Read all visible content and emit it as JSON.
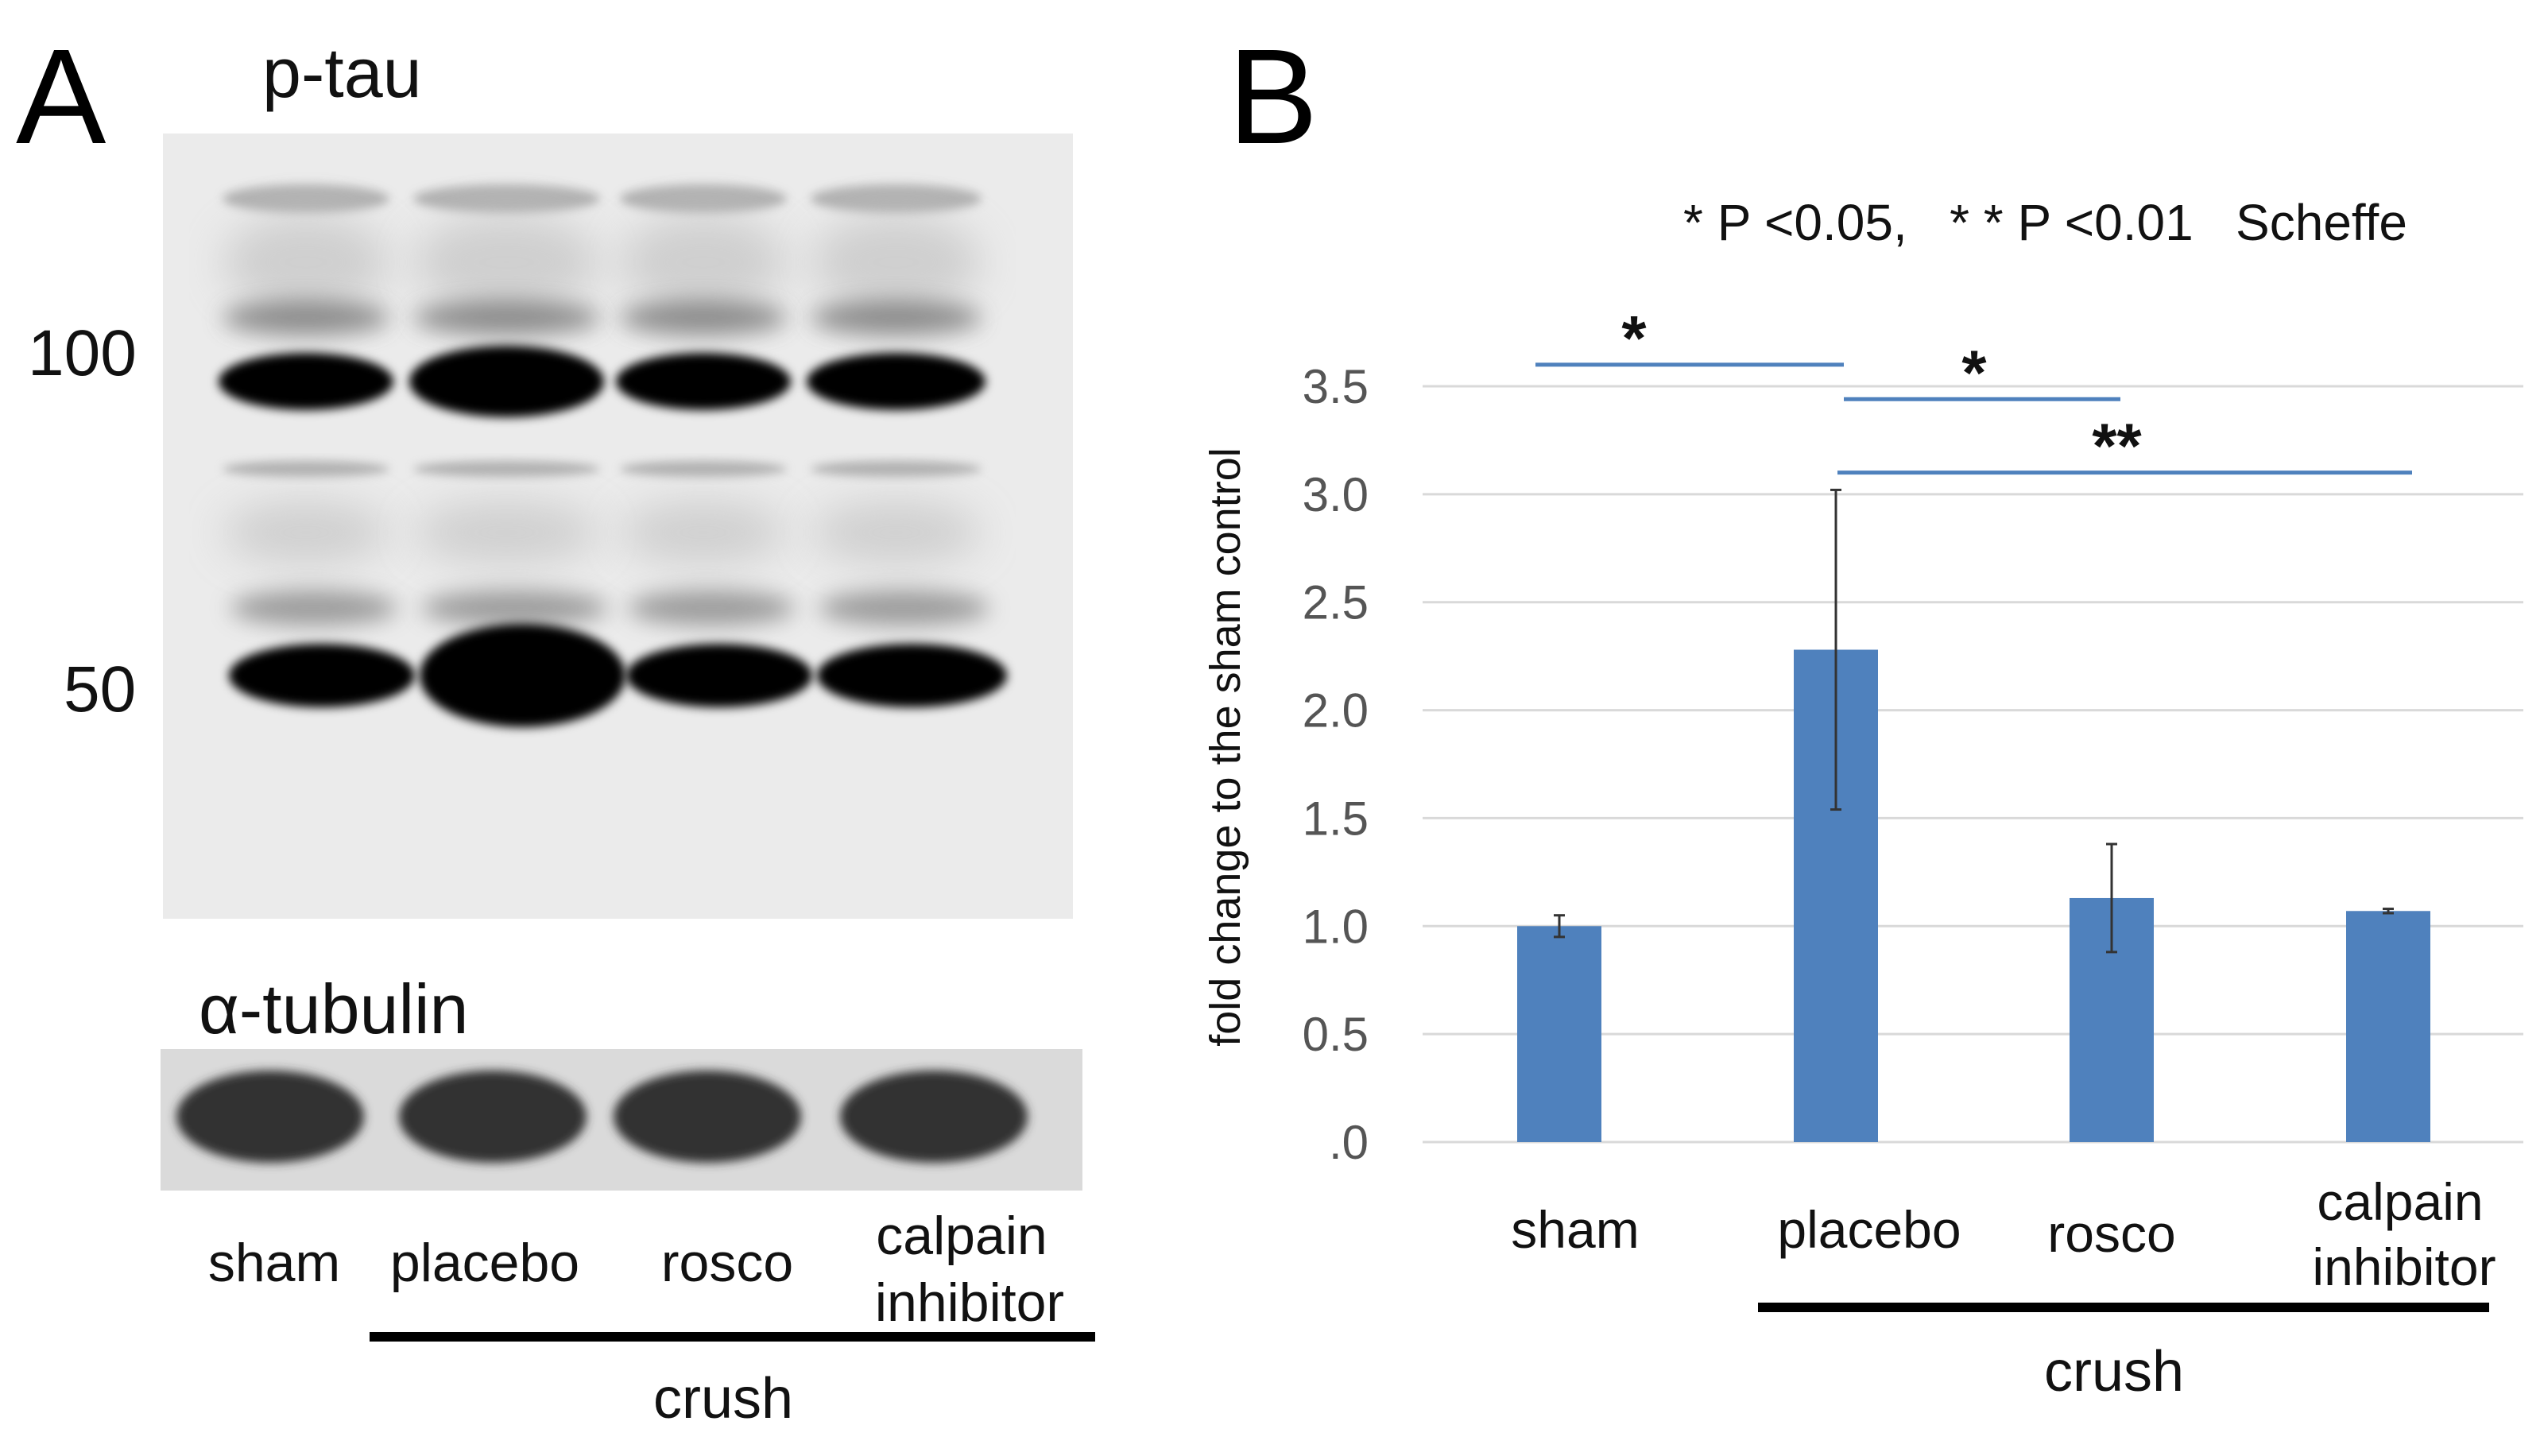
{
  "panel_a": {
    "letter": "A",
    "blot_top_label": "p-tau",
    "blot_bottom_label": "α-tubulin",
    "mw_markers": [
      "100",
      "50"
    ],
    "lanes": [
      {
        "line1": "sham",
        "line2": ""
      },
      {
        "line1": "placebo",
        "line2": ""
      },
      {
        "line1": "rosco",
        "line2": ""
      },
      {
        "line1": "calpain",
        "line2": "inhibitor"
      }
    ],
    "group_label": "crush"
  },
  "panel_b": {
    "letter": "B",
    "stat_note": "* P <0.05,   * * P <0.01   Scheffe",
    "group_label": "crush",
    "chart_data": {
      "type": "bar",
      "title": "",
      "xlabel": "",
      "ylabel": "fold change to the sham control",
      "categories": [
        {
          "line1": "sham",
          "line2": ""
        },
        {
          "line1": "placebo",
          "line2": ""
        },
        {
          "line1": "rosco",
          "line2": ""
        },
        {
          "line1": "calpain",
          "line2": "inhibitor"
        }
      ],
      "values": [
        1.0,
        2.28,
        1.13,
        1.07
      ],
      "errors": [
        0.05,
        0.74,
        0.25,
        0.01
      ],
      "ylim": [
        0,
        3.5
      ],
      "yticks": [
        ".0",
        "0.5",
        "1.0",
        "1.5",
        "2.0",
        "2.5",
        "3.0",
        "3.5"
      ],
      "grid": true,
      "bar_color": "#4f81bd",
      "significance": [
        {
          "from": 0,
          "to": 1,
          "label": "*",
          "y": 3.6
        },
        {
          "from": 1,
          "to": 2,
          "label": "*",
          "y": 3.44
        },
        {
          "from": 1,
          "to": 3,
          "label": "**",
          "y": 3.1
        }
      ]
    }
  }
}
